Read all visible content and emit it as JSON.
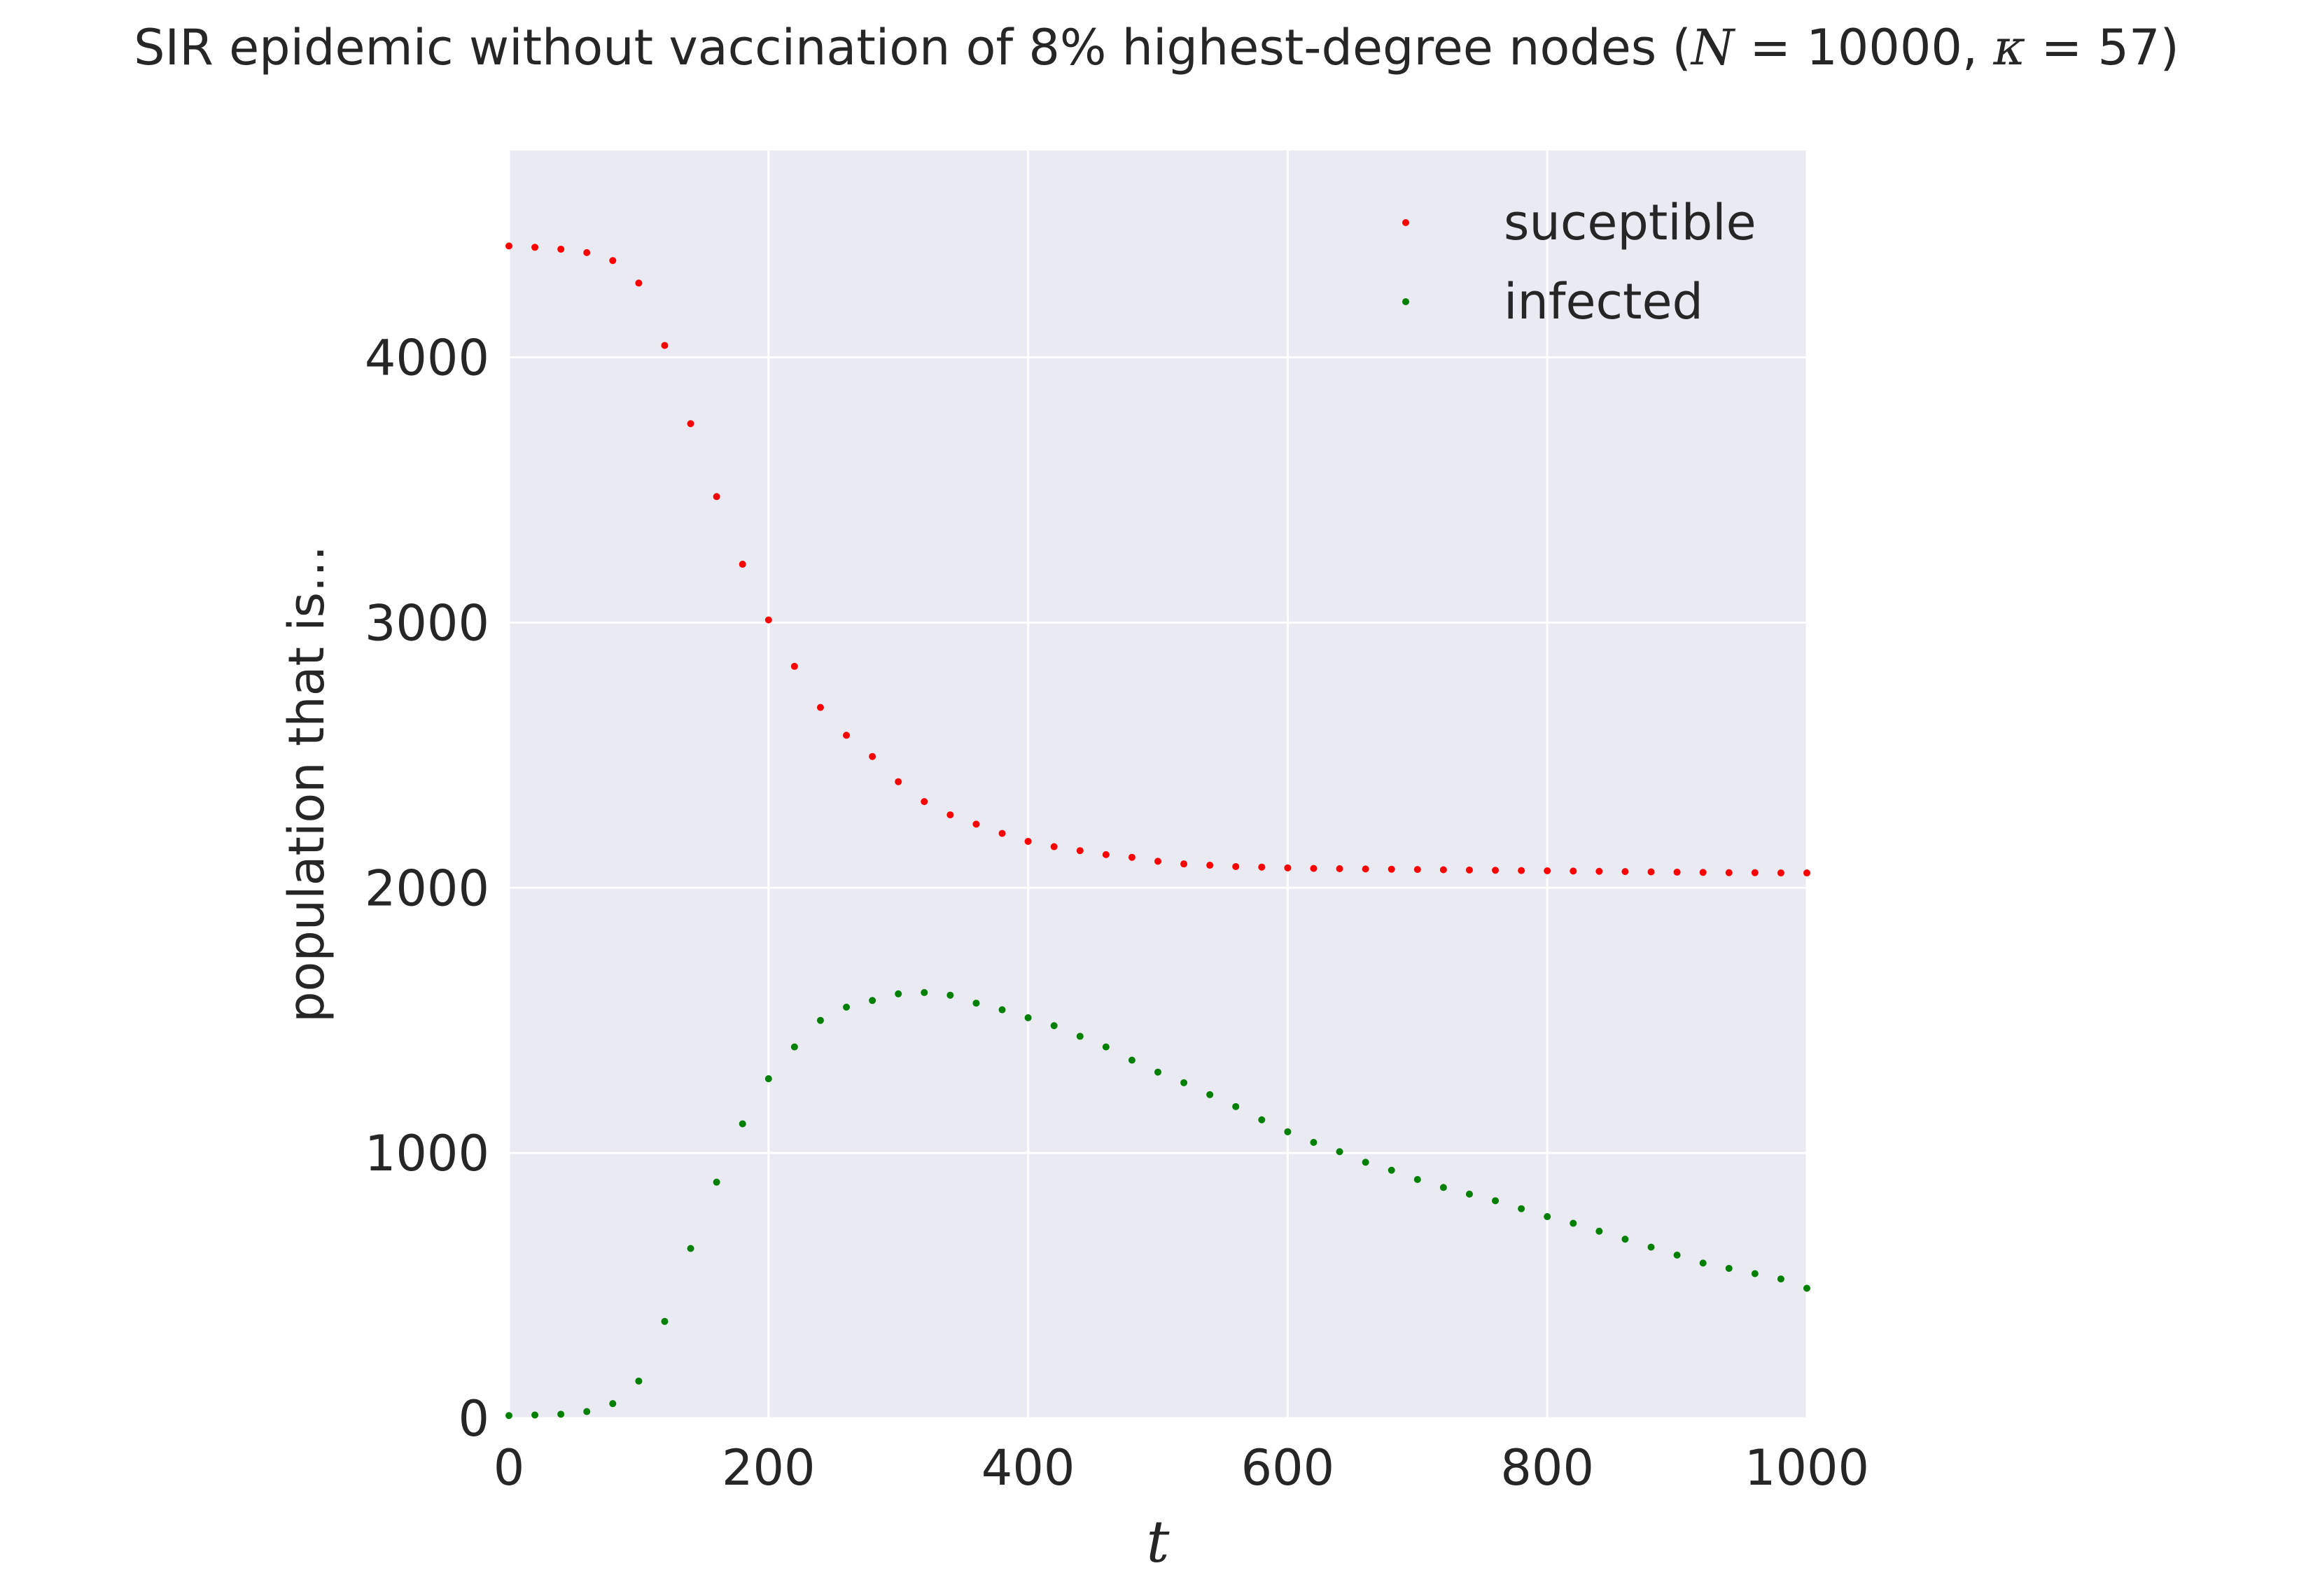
{
  "chart_data": {
    "type": "scatter",
    "title": {
      "prefix": "SIR epidemic without vaccination of 8% highest-degree nodes (",
      "n_symbol": "N",
      "n_value": " = 10000, ",
      "k_symbol": "κ",
      "k_value": " = 57)"
    },
    "xlabel": "t",
    "ylabel": "population that is...",
    "xlim": [
      0,
      1000
    ],
    "ylim": [
      0,
      4780
    ],
    "xticks": [
      0,
      200,
      400,
      600,
      800,
      1000
    ],
    "yticks": [
      0,
      1000,
      2000,
      3000,
      4000
    ],
    "grid": true,
    "legend_position": "top-right",
    "background_color": "#eaeaf2",
    "x": [
      0,
      20,
      40,
      60,
      80,
      100,
      120,
      140,
      160,
      180,
      200,
      220,
      240,
      260,
      280,
      300,
      320,
      340,
      360,
      380,
      400,
      420,
      440,
      460,
      480,
      500,
      520,
      540,
      560,
      580,
      600,
      620,
      640,
      660,
      680,
      700,
      720,
      740,
      760,
      780,
      800,
      820,
      840,
      860,
      880,
      900,
      920,
      940,
      960,
      980,
      1000
    ],
    "series": [
      {
        "name": "suceptible",
        "color": "#ff0000",
        "values": [
          4420,
          4415,
          4408,
          4395,
          4365,
          4280,
          4045,
          3750,
          3475,
          3220,
          3010,
          2835,
          2680,
          2575,
          2495,
          2400,
          2325,
          2275,
          2240,
          2205,
          2175,
          2155,
          2140,
          2125,
          2115,
          2100,
          2090,
          2085,
          2080,
          2078,
          2075,
          2073,
          2072,
          2071,
          2070,
          2069,
          2068,
          2067,
          2066,
          2065,
          2064,
          2063,
          2062,
          2061,
          2060,
          2059,
          2058,
          2057,
          2057,
          2056,
          2056
        ]
      },
      {
        "name": "infected",
        "color": "#008000",
        "values": [
          10,
          12,
          15,
          25,
          55,
          140,
          365,
          640,
          890,
          1110,
          1280,
          1400,
          1500,
          1550,
          1575,
          1600,
          1605,
          1595,
          1565,
          1540,
          1510,
          1480,
          1440,
          1400,
          1350,
          1305,
          1265,
          1220,
          1175,
          1125,
          1080,
          1040,
          1005,
          965,
          935,
          900,
          870,
          845,
          820,
          790,
          760,
          735,
          705,
          675,
          645,
          615,
          585,
          565,
          545,
          525,
          490
        ]
      }
    ]
  }
}
